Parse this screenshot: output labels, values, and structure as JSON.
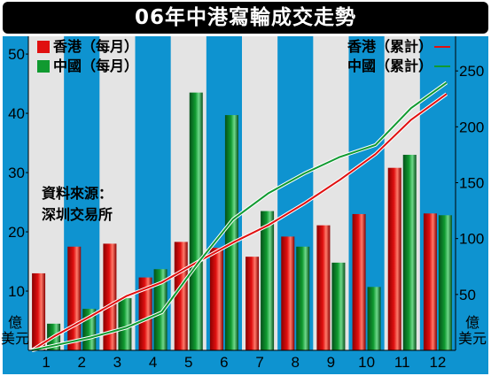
{
  "chart_data": {
    "type": "bar",
    "title": "06年中港寫輪成交走勢",
    "categories": [
      "1",
      "2",
      "3",
      "4",
      "5",
      "6",
      "7",
      "8",
      "9",
      "10",
      "11",
      "12"
    ],
    "series": [
      {
        "name": "香港（每月）",
        "kind": "bar",
        "axis": "left",
        "color": "#e01010",
        "values": [
          13,
          17.5,
          18,
          12.3,
          18.3,
          17.3,
          15.8,
          19.2,
          21.1,
          23,
          30.8,
          23.1
        ]
      },
      {
        "name": "中國（每月）",
        "kind": "bar",
        "axis": "left",
        "color": "#109a30",
        "values": [
          4.5,
          7,
          8.8,
          13.7,
          43.5,
          39.7,
          23.5,
          17.5,
          14.8,
          10.7,
          33,
          22.8
        ]
      },
      {
        "name": "香港（累計）",
        "kind": "line",
        "axis": "right",
        "color": "#e01010",
        "values": [
          13,
          30.5,
          48.5,
          60.8,
          79.1,
          96.4,
          112.2,
          131.4,
          152.5,
          175.5,
          206.3,
          229.4
        ]
      },
      {
        "name": "中國（累計）",
        "kind": "line",
        "axis": "right",
        "color": "#109a30",
        "values": [
          4.5,
          11.5,
          20.3,
          34,
          77.5,
          117.2,
          140.7,
          158.2,
          173,
          183.7,
          216.7,
          239.5
        ]
      }
    ],
    "y_left": {
      "min": 0,
      "max": 53,
      "ticks": [
        10,
        20,
        30,
        40,
        50
      ],
      "unit": "億美元"
    },
    "y_right": {
      "min": 0,
      "max": 281,
      "ticks": [
        50,
        100,
        150,
        200,
        250
      ],
      "unit": "億美元"
    },
    "source": [
      "資料來源：",
      "深圳交易所"
    ],
    "background": "#0e93d0",
    "stripe_color": "#e4e4e4"
  }
}
